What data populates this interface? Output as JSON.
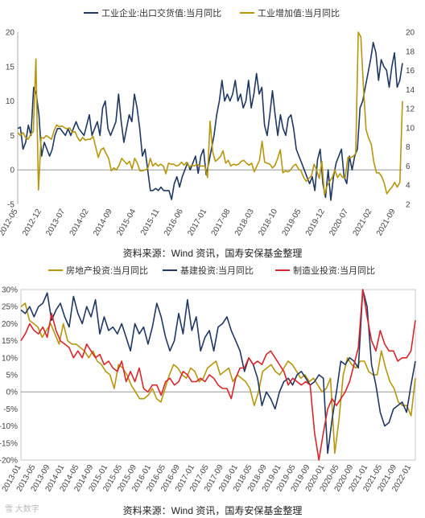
{
  "chart_data": [
    {
      "type": "line",
      "legend": {
        "position": "top"
      },
      "x_ticks": [
        "2012-05",
        "2012-12",
        "2013-07",
        "2014-02",
        "2014-09",
        "2015-04",
        "2015-11",
        "2016-06",
        "2017-01",
        "2017-08",
        "2018-03",
        "2018-10",
        "2019-05",
        "2019-12",
        "2020-07",
        "2021-02",
        "2021-09"
      ],
      "y_left": {
        "range": [
          -5,
          20
        ],
        "ticks": [
          "-5",
          "0",
          "5",
          "10",
          "15",
          "20"
        ]
      },
      "y_right": {
        "range": [
          2,
          20
        ],
        "ticks": [
          "2",
          "4",
          "6",
          "8",
          "10",
          "12",
          "14",
          "16",
          "18",
          "20"
        ]
      },
      "series": [
        {
          "name": "工业企业:出口交货值:当月同比",
          "color": "#1f3864",
          "axis": "left",
          "values": [
            6,
            6.2,
            3,
            4,
            6.5,
            5,
            12,
            11,
            8,
            2,
            4,
            3,
            2,
            3,
            5,
            6,
            6,
            5.5,
            5,
            6,
            5,
            6,
            7,
            6,
            5.5,
            5,
            6.5,
            8,
            5,
            6,
            7,
            5,
            9,
            10,
            6,
            5,
            6,
            7,
            11,
            7,
            4,
            6,
            8,
            7,
            11,
            9,
            6,
            2,
            3,
            0,
            -3,
            -3,
            -2.7,
            -3,
            -2.5,
            -3,
            -3,
            -3,
            -4.3,
            -2,
            -1,
            -2.5,
            -1,
            0,
            1,
            0,
            1,
            2,
            -0.5,
            2,
            3,
            -0.7,
            1,
            3,
            5,
            8,
            10,
            13,
            10,
            11,
            10,
            11,
            13,
            10,
            11,
            9,
            10,
            13,
            9,
            11,
            14,
            11,
            12,
            6.5,
            5,
            8,
            11.5,
            8,
            5,
            8,
            6,
            5,
            7.5,
            8,
            6,
            3,
            2,
            1,
            0,
            -1,
            -2,
            -1,
            -3,
            1.5,
            3,
            -2,
            -4,
            0,
            -4.4,
            -1,
            1,
            2,
            3,
            -1,
            -2,
            2,
            0,
            2,
            3,
            9,
            10,
            12,
            14,
            16,
            18.5,
            17,
            13,
            16,
            15,
            14.5,
            12,
            15,
            17,
            12,
            13,
            15.5
          ],
          "right_equiv": []
        },
        {
          "name": "工业增加值:当月同比",
          "color": "#b8960c",
          "axis": "right",
          "values": [
            9.5,
            9.2,
            9.5,
            9,
            8.8,
            9.3,
            9.6,
            17.2,
            3.5,
            9,
            8.9,
            9.2,
            9,
            8.8,
            9.7,
            10.3,
            10.1,
            10.2,
            10,
            9.9,
            10,
            9.5,
            9.6,
            9,
            8.6,
            9,
            8.7,
            8.8,
            8.8,
            9.1,
            8,
            6.9,
            7.7,
            7.9,
            7.3,
            6.8,
            5.5,
            5.8,
            5.6,
            6.1,
            6.8,
            6.5,
            6.2,
            6.5,
            5.7,
            6.8,
            6.3,
            5.5,
            5.5,
            5.6,
            5.7,
            6.8,
            6,
            6.3,
            6,
            6.2,
            6,
            5.2,
            6.3,
            6.2,
            6.2,
            6,
            6.1,
            6.4,
            6.1,
            6.4,
            5.9,
            6.1,
            6,
            6.2,
            6,
            6,
            6,
            4.8,
            10.7,
            7.5,
            6.5,
            6.7,
            7,
            7.6,
            6.3,
            6.6,
            6,
            6.2,
            6.1,
            6.2,
            6.5,
            6.6,
            6.3,
            6.1,
            6.3,
            5.4,
            6,
            6.6,
            8.6,
            6.4,
            6.3,
            6.2,
            5.8,
            6.1,
            6.8,
            7.7,
            5.3,
            5.5,
            5.4,
            5.6,
            6,
            6.2,
            5.7,
            5.5,
            4.8,
            4.4,
            4.7,
            5,
            6.2,
            5.6,
            4.7,
            6.5,
            3,
            3.9,
            4.4,
            4.8,
            5.6,
            4.8,
            5.2,
            4.8,
            4.8,
            6.9,
            6.9,
            7,
            7.3,
            35.1,
            19.5,
            14.1,
            9.8,
            8.9,
            8.3,
            6.4,
            5.3,
            5.3,
            4.9,
            4.2,
            3.1,
            3.5,
            3.8,
            4.3,
            3.8,
            4.3,
            12.8
          ]
        }
      ]
    },
    {
      "type": "line",
      "legend": {
        "position": "top"
      },
      "x_ticks": [
        "2013-01",
        "2013-05",
        "2013-09",
        "2014-01",
        "2014-05",
        "2014-09",
        "2015-01",
        "2015-05",
        "2015-09",
        "2016-01",
        "2016-05",
        "2016-09",
        "2017-01",
        "2017-05",
        "2017-09",
        "2018-01",
        "2018-05",
        "2018-09",
        "2019-01",
        "2019-05",
        "2019-09",
        "2020-01",
        "2020-05",
        "2020-09",
        "2021-01",
        "2021-05",
        "2021-09",
        "2022-01"
      ],
      "y_left": {
        "range": [
          -20,
          30
        ],
        "ticks": [
          "-20%",
          "-15%",
          "-10%",
          "-5%",
          "0%",
          "5%",
          "10%",
          "15%",
          "20%",
          "25%",
          "30%"
        ]
      },
      "series": [
        {
          "name": "房地产投资:当月同比",
          "color": "#b8960c",
          "values": [
            25,
            26,
            21,
            20,
            19,
            16,
            18,
            20,
            17,
            14,
            20,
            15,
            14,
            14,
            13,
            12,
            10,
            12,
            9,
            8,
            6,
            5,
            1,
            8,
            7,
            5,
            2,
            0,
            -2,
            -2,
            -1,
            1,
            -2,
            -3,
            1,
            5,
            8,
            7,
            5,
            4,
            7,
            6,
            3,
            4,
            7,
            8,
            9,
            5,
            6,
            7,
            3,
            5,
            4,
            3,
            1,
            -4,
            0,
            6,
            7,
            8,
            6,
            5,
            7,
            9,
            8,
            6,
            4,
            5,
            3,
            4,
            2,
            0,
            1,
            4,
            -18,
            -8,
            5,
            10,
            8,
            7,
            9,
            9,
            6,
            5,
            5,
            12,
            7,
            3,
            1,
            -3,
            -4,
            -4,
            -7,
            4
          ]
        },
        {
          "name": "基建投资:当月同比",
          "color": "#1f3864",
          "values": [
            24,
            23,
            25,
            22,
            25,
            26,
            29,
            21,
            24,
            26,
            22,
            19,
            28,
            23,
            20,
            25,
            22,
            27,
            17,
            22,
            18,
            19,
            17,
            20,
            16,
            12,
            20,
            17,
            19,
            14,
            19,
            26,
            22,
            16,
            12,
            15,
            23,
            17,
            27,
            18,
            22,
            12,
            16,
            18,
            12,
            19,
            20,
            22,
            18,
            15,
            12,
            6,
            10,
            8,
            4,
            -4,
            0,
            -2,
            -5,
            0,
            3,
            4,
            2,
            5,
            6,
            4,
            2,
            3,
            5,
            4,
            -18,
            -8,
            0,
            9,
            8,
            10,
            9,
            7,
            30,
            25,
            8,
            2,
            -6,
            -10,
            -9,
            -5,
            -4,
            -3,
            -6,
            2,
            9
          ]
        },
        {
          "name": "制造业投资:当月同比",
          "color": "#d9262b",
          "values": [
            15,
            17,
            20,
            18,
            17,
            19,
            16,
            23,
            18,
            15,
            14,
            13,
            10,
            12,
            10,
            14,
            12,
            10,
            11,
            8,
            9,
            7,
            6,
            9,
            3,
            6,
            3,
            7,
            1,
            0,
            2,
            2,
            -1,
            3,
            4,
            2,
            3,
            6,
            5,
            3,
            3,
            4,
            3,
            5,
            4,
            2,
            1,
            1,
            -2,
            4,
            7,
            7,
            10,
            8,
            9,
            8,
            11,
            12,
            10,
            8,
            6,
            2,
            4,
            3,
            2,
            3,
            2,
            -12,
            -20,
            -12,
            -5,
            -2,
            -4,
            -2,
            0,
            3,
            8,
            13,
            30,
            22,
            15,
            12,
            18,
            14,
            12,
            12,
            9,
            10,
            10,
            12,
            21
          ]
        }
      ]
    }
  ],
  "legend_items": {
    "chart1": [
      "工业企业:出口交货值:当月同比",
      "工业增加值:当月同比"
    ],
    "chart2": [
      "房地产投资:当月同比",
      "基建投资:当月同比",
      "制造业投资:当月同比"
    ]
  },
  "source_text": "资料来源：Wind 资讯，国寿安保基金整理",
  "watermark": "雪 大数字"
}
